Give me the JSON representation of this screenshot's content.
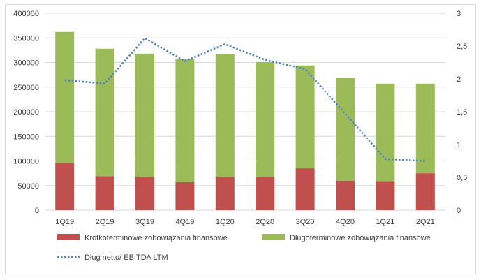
{
  "chart_data": {
    "type": "bar",
    "stacked": true,
    "categories": [
      "1Q19",
      "2Q19",
      "3Q19",
      "4Q19",
      "1Q20",
      "2Q20",
      "3Q20",
      "4Q20",
      "1Q21",
      "2Q21"
    ],
    "series": [
      {
        "name": "Krótkoterminowe zobowiązania finansowe",
        "color": "#c0504d",
        "axis": "left",
        "kind": "bar",
        "values": [
          95000,
          69000,
          68000,
          57000,
          68000,
          67000,
          85000,
          60000,
          59000,
          75000
        ]
      },
      {
        "name": "Długoterminowe zobowiązania finansowe",
        "color": "#9bbb59",
        "axis": "left",
        "kind": "bar",
        "values": [
          267000,
          259000,
          250000,
          250000,
          249000,
          234000,
          209000,
          209000,
          198000,
          182000
        ]
      },
      {
        "name": "Dług netto/ EBITDA LTM",
        "color": "#4f81bd",
        "axis": "right",
        "kind": "line-dotted",
        "values": [
          1.98,
          1.93,
          2.62,
          2.27,
          2.53,
          2.29,
          2.15,
          1.47,
          0.78,
          0.75
        ]
      }
    ],
    "y_left": {
      "ylim": [
        0,
        400000
      ],
      "ticks": [
        "0",
        "50000",
        "100000",
        "150000",
        "200000",
        "250000",
        "300000",
        "350000",
        "400000"
      ]
    },
    "y_right": {
      "ylim": [
        0,
        3
      ],
      "ticks": [
        "0",
        "0,5",
        "1",
        "1,5",
        "2",
        "2,5",
        "3"
      ]
    },
    "grid": true,
    "legend_position": "bottom"
  }
}
